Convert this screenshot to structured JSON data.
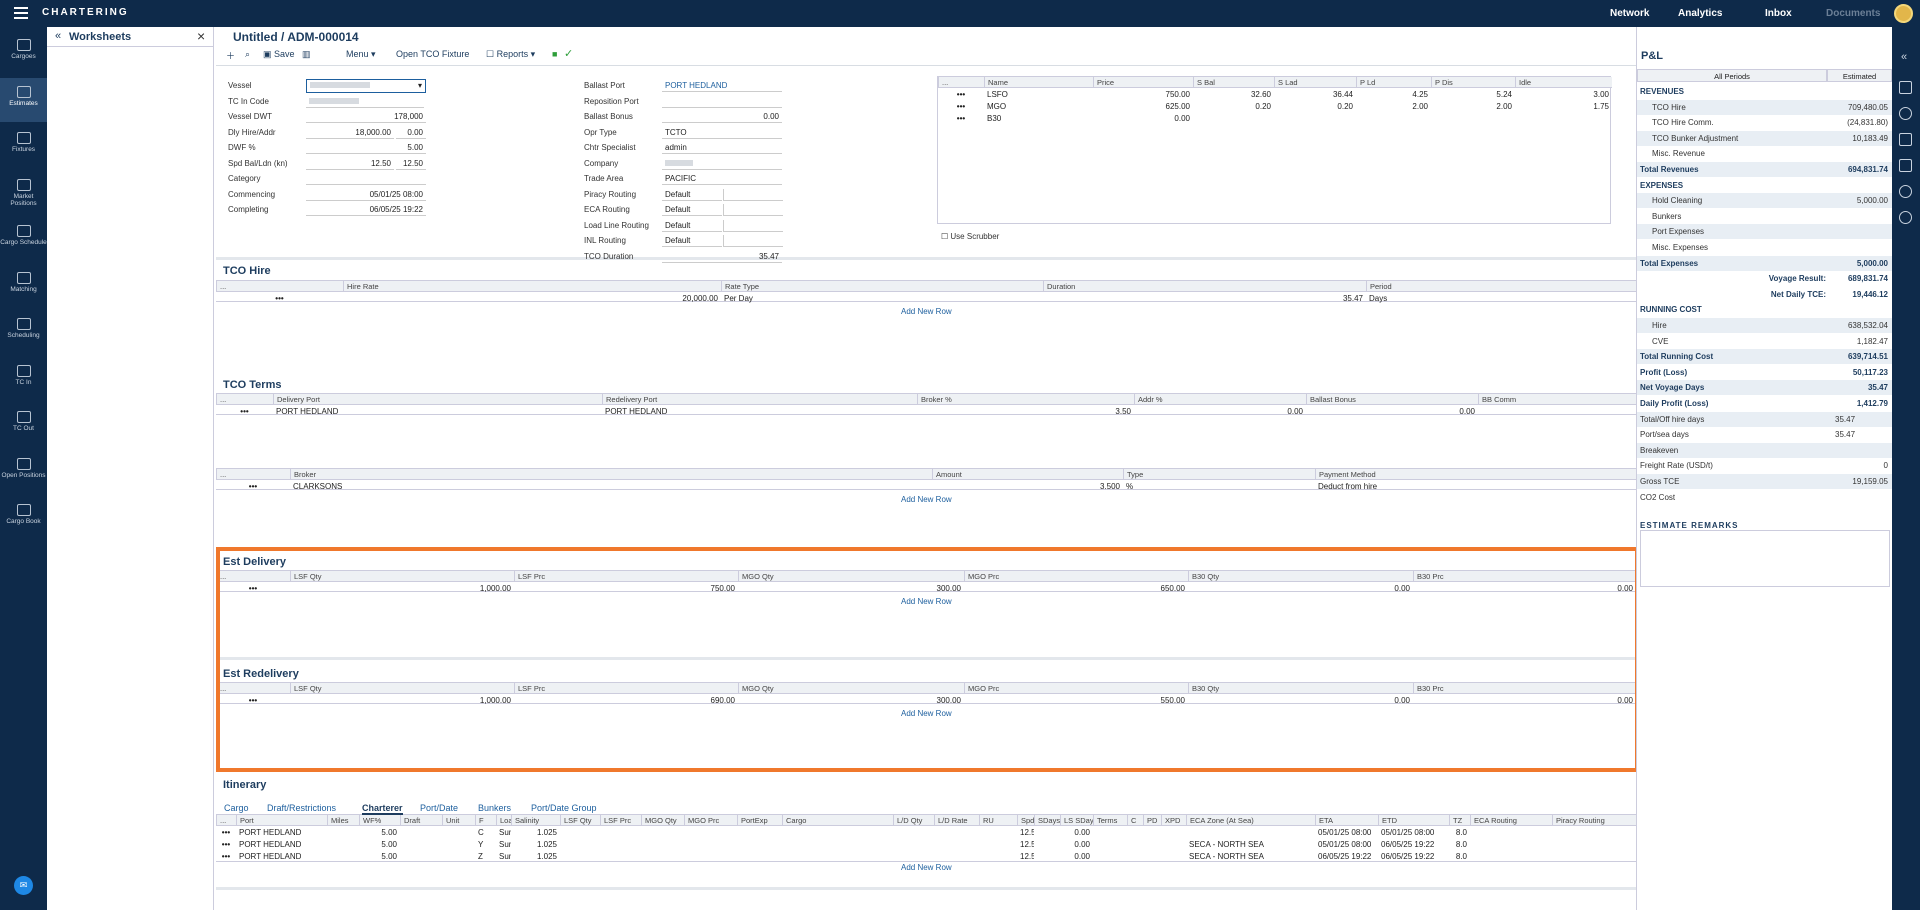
{
  "app": {
    "title": "CHARTERING",
    "nav": [
      "Network",
      "Analytics",
      "Inbox",
      "Documents"
    ]
  },
  "leftnav": [
    {
      "label": "Cargoes",
      "icon": "cargoes-icon"
    },
    {
      "label": "Estimates",
      "icon": "estimates-icon"
    },
    {
      "label": "Fixtures",
      "icon": "fixtures-icon"
    },
    {
      "label": "Market Positions",
      "icon": "map-pin-icon"
    },
    {
      "label": "Cargo Schedule",
      "icon": "schedule-icon"
    },
    {
      "label": "Matching",
      "icon": "matching-icon"
    },
    {
      "label": "Scheduling",
      "icon": "calendar-icon"
    },
    {
      "label": "TC In",
      "icon": "tc-in-icon"
    },
    {
      "label": "TC Out",
      "icon": "tc-out-icon"
    },
    {
      "label": "Open Positions",
      "icon": "open-positions-icon"
    },
    {
      "label": "Cargo Book",
      "icon": "cargo-book-icon"
    }
  ],
  "worksheets": {
    "title": "Worksheets"
  },
  "doc": {
    "title": "Untitled /",
    "id": "ADM-000014"
  },
  "toolbar": {
    "save": "Save",
    "menu": "Menu",
    "open_tco": "Open TCO Fixture",
    "reports": "Reports"
  },
  "form_left": [
    {
      "label": "Vessel",
      "v1": ""
    },
    {
      "label": "TC In Code",
      "v1": ""
    },
    {
      "label": "Vessel DWT",
      "v1": "178,000"
    },
    {
      "label": "Dly Hire/Addr",
      "v1": "18,000.00",
      "v2": "0.00"
    },
    {
      "label": "DWF %",
      "v1": "5.00"
    },
    {
      "label": "Spd Bal/Ldn (kn)",
      "v1": "12.50",
      "v2": "12.50"
    },
    {
      "label": "Category",
      "v1": ""
    },
    {
      "label": "Commencing",
      "v1": "05/01/25 08:00"
    },
    {
      "label": "Completing",
      "v1": "06/05/25 19:22"
    }
  ],
  "form_mid": [
    {
      "label": "Ballast Port",
      "v": "PORT HEDLAND"
    },
    {
      "label": "Reposition Port",
      "v": ""
    },
    {
      "label": "Ballast Bonus",
      "v": "0.00"
    },
    {
      "label": "Opr Type",
      "v": "TCTO"
    },
    {
      "label": "Chtr Specialist",
      "v": "admin"
    },
    {
      "label": "Company",
      "v": ""
    },
    {
      "label": "Trade Area",
      "v": "PACIFIC"
    },
    {
      "label": "Piracy Routing",
      "v": "Default"
    },
    {
      "label": "ECA Routing",
      "v": "Default"
    },
    {
      "label": "Load Line Routing",
      "v": "Default"
    },
    {
      "label": "INL Routing",
      "v": "Default"
    },
    {
      "label": "TCO Duration",
      "v": "35.47"
    }
  ],
  "bunker_table": {
    "headers": [
      "...",
      "Name",
      "Price",
      "S Bal",
      "S Lad",
      "P Ld",
      "P Dis",
      "Idle"
    ],
    "rows": [
      [
        "•••",
        "LSFO",
        "750.00",
        "32.60",
        "36.44",
        "4.25",
        "5.24",
        "3.00"
      ],
      [
        "•••",
        "MGO",
        "625.00",
        "0.20",
        "0.20",
        "2.00",
        "2.00",
        "1.75"
      ],
      [
        "•••",
        "B30",
        "0.00",
        "",
        "",
        "",
        "",
        ""
      ]
    ],
    "scrubber": "Use Scrubber"
  },
  "tco_hire": {
    "title": "TCO Hire",
    "headers": [
      "...",
      "Hire Rate",
      "Rate Type",
      "Duration",
      "Period"
    ],
    "row": [
      "•••",
      "20,000.00",
      "Per Day",
      "35.47",
      "Days"
    ],
    "add": "Add New Row"
  },
  "tco_terms": {
    "title": "TCO Terms",
    "headers": [
      "...",
      "Delivery Port",
      "Redelivery Port",
      "Broker %",
      "Addr %",
      "Ballast Bonus",
      "BB Comm"
    ],
    "row": [
      "•••",
      "PORT HEDLAND",
      "PORT HEDLAND",
      "3.50",
      "0.00",
      "0.00",
      ""
    ]
  },
  "broker": {
    "headers": [
      "...",
      "Broker",
      "Amount",
      "Type",
      "Payment Method"
    ],
    "row": [
      "•••",
      "CLARKSONS",
      "3.500",
      "%",
      "Deduct from hire"
    ],
    "add": "Add New Row"
  },
  "est_delivery": {
    "title": "Est Delivery",
    "headers": [
      "...",
      "LSF Qty",
      "LSF Prc",
      "MGO Qty",
      "MGO Prc",
      "B30 Qty",
      "B30 Prc"
    ],
    "row": [
      "•••",
      "1,000.00",
      "750.00",
      "300.00",
      "650.00",
      "0.00",
      "0.00"
    ],
    "add": "Add New Row"
  },
  "est_redelivery": {
    "title": "Est Redelivery",
    "headers": [
      "...",
      "LSF Qty",
      "LSF Prc",
      "MGO Qty",
      "MGO Prc",
      "B30 Qty",
      "B30 Prc"
    ],
    "row": [
      "•••",
      "1,000.00",
      "690.00",
      "300.00",
      "550.00",
      "0.00",
      "0.00"
    ],
    "add": "Add New Row"
  },
  "itinerary": {
    "title": "Itinerary",
    "tabs": [
      "Cargo",
      "Draft/Restrictions",
      "Charterer",
      "Port/Date",
      "Bunkers",
      "Port/Date Group"
    ],
    "active_tab": "Charterer",
    "headers": [
      "...",
      "Port",
      "Miles",
      "WF%",
      "Draft",
      "Unit",
      "F",
      "Loadline",
      "Salinity",
      "LSF Qty",
      "LSF Prc",
      "MGO Qty",
      "MGO Prc",
      "PortExp",
      "Cargo",
      "L/D Qty",
      "L/D Rate",
      "RU",
      "Spd",
      "SDays",
      "LS SDay",
      "Terms",
      "C",
      "PD",
      "XPD",
      "ECA Zone (At Sea)",
      "ETA",
      "ETD",
      "TZ",
      "ECA Routing",
      "Piracy Routing"
    ],
    "rows": [
      [
        "•••",
        "PORT HEDLAND",
        "",
        "5.00",
        "",
        "",
        "C",
        "Summer Salt",
        "1.025",
        "",
        "",
        "",
        "",
        "",
        "",
        "",
        "",
        "",
        "12.5",
        "",
        "0.00",
        "",
        "",
        "",
        "",
        "",
        "05/01/25 08:00",
        "05/01/25 08:00",
        "8.0",
        "",
        ""
      ],
      [
        "•••",
        "PORT HEDLAND",
        "",
        "5.00",
        "",
        "",
        "Y",
        "Summer Salt",
        "1.025",
        "",
        "",
        "",
        "",
        "",
        "",
        "",
        "",
        "",
        "12.5",
        "",
        "0.00",
        "",
        "",
        "",
        "",
        "SECA - NORTH SEA",
        "05/01/25 08:00",
        "06/05/25 19:22",
        "8.0",
        "",
        ""
      ],
      [
        "•••",
        "PORT HEDLAND",
        "",
        "5.00",
        "",
        "",
        "Z",
        "Summer Salt",
        "1.025",
        "",
        "",
        "",
        "",
        "",
        "",
        "",
        "",
        "",
        "12.5",
        "",
        "0.00",
        "",
        "",
        "",
        "",
        "SECA - NORTH SEA",
        "06/05/25 19:22",
        "06/05/25 19:22",
        "8.0",
        "",
        ""
      ]
    ],
    "add": "Add New Row"
  },
  "pnl": {
    "title": "P&L",
    "col1": "All Periods",
    "col2": "Estimated",
    "rows": [
      {
        "l": "REVENUES",
        "v": "",
        "t": "head"
      },
      {
        "l": "TCO Hire",
        "v": "709,480.05",
        "t": "ind shade"
      },
      {
        "l": "TCO Hire Comm.",
        "v": "(24,831.80)",
        "t": "ind"
      },
      {
        "l": "TCO Bunker Adjustment",
        "v": "10,183.49",
        "t": "ind shade"
      },
      {
        "l": "Misc. Revenue",
        "v": "",
        "t": "ind"
      },
      {
        "l": "Total Revenues",
        "v": "694,831.74",
        "t": "bold shade"
      },
      {
        "l": "EXPENSES",
        "v": "",
        "t": "head"
      },
      {
        "l": "Hold Cleaning",
        "v": "5,000.00",
        "t": "ind shade"
      },
      {
        "l": "Bunkers",
        "v": "",
        "t": "ind"
      },
      {
        "l": "Port Expenses",
        "v": "",
        "t": "ind shade"
      },
      {
        "l": "Misc. Expenses",
        "v": "",
        "t": "ind"
      },
      {
        "l": "Total Expenses",
        "v": "5,000.00",
        "t": "bold shade"
      },
      {
        "l": "Voyage Result:",
        "v": "689,831.74",
        "t": "bold right"
      },
      {
        "l": "Net Daily TCE:",
        "v": "19,446.12",
        "t": "bold right"
      },
      {
        "l": "RUNNING COST",
        "v": "",
        "t": "head"
      },
      {
        "l": "Hire",
        "v": "638,532.04",
        "t": "ind shade"
      },
      {
        "l": "CVE",
        "v": "1,182.47",
        "t": "ind"
      },
      {
        "l": "Total Running Cost",
        "v": "639,714.51",
        "t": "bold shade"
      },
      {
        "l": "Profit (Loss)",
        "v": "50,117.23",
        "t": "bold"
      },
      {
        "l": "Net Voyage Days",
        "v": "35.47",
        "t": "bold shade"
      },
      {
        "l": "Daily Profit (Loss)",
        "v": "1,412.79",
        "t": "bold"
      },
      {
        "l": "Total/Off hire days",
        "v": "35.47",
        "t": "shade mid"
      },
      {
        "l": "Port/sea days",
        "v": "35.47",
        "t": "mid"
      },
      {
        "l": "Breakeven",
        "v": "",
        "t": "shade"
      },
      {
        "l": "Freight Rate (USD/t)",
        "v": "0",
        "t": ""
      },
      {
        "l": "Gross TCE",
        "v": "19,159.05",
        "t": "shade"
      },
      {
        "l": "CO2 Cost",
        "v": "",
        "t": ""
      }
    ],
    "remarks": "ESTIMATE REMARKS"
  }
}
